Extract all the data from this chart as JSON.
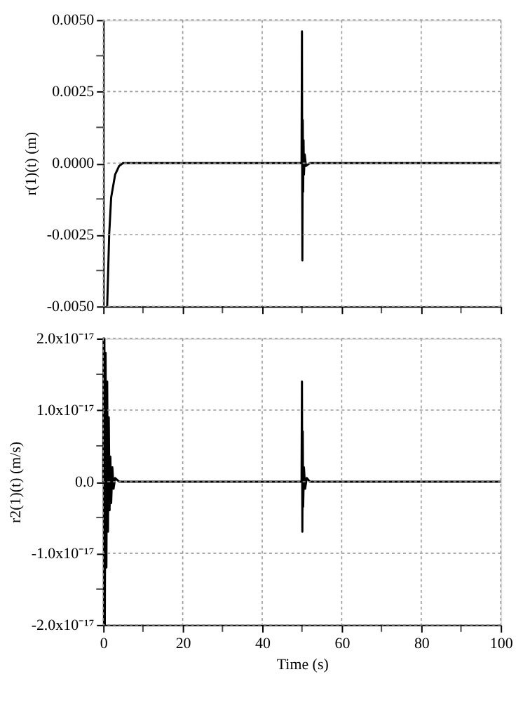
{
  "chart_data": [
    {
      "type": "line",
      "ylabel": "r(1)(t) (m)",
      "tick_labels": "y",
      "grid": true,
      "line_style": "solid",
      "marker": "none",
      "series": [
        {
          "color": "#000000",
          "x": [
            1.0,
            1.5,
            2,
            3,
            4,
            5,
            6,
            20,
            49.9,
            50,
            50.1,
            50.2,
            50.3,
            50.4,
            50.5,
            50.7,
            51,
            52,
            70,
            100
          ],
          "values": [
            -0.005,
            -0.0025,
            -0.0012,
            -0.0004,
            -0.0001,
            0,
            0,
            0,
            0,
            0.0046,
            -0.0034,
            0.0015,
            -0.001,
            0.0008,
            -0.0004,
            0.0003,
            -0.0001,
            0,
            0,
            0
          ]
        }
      ],
      "xlim": [
        0,
        100
      ],
      "xticks": [
        0,
        {
          "value": 10,
          "label": null
        },
        20,
        {
          "value": 30,
          "label": null
        },
        40,
        {
          "value": 50,
          "label": null
        },
        60,
        {
          "value": 70,
          "label": null
        },
        80,
        {
          "value": 90,
          "label": null
        },
        100
      ],
      "ylim": [
        -0.005,
        0.005
      ],
      "yticks": [
        {
          "value": -0.005,
          "label": "-0.0050"
        },
        {
          "value": -0.00375,
          "label": null
        },
        {
          "value": -0.0025,
          "label": "-0.0025"
        },
        {
          "value": -0.00125,
          "label": null
        },
        {
          "value": 0,
          "label": "0.0000"
        },
        {
          "value": 0.00125,
          "label": null
        },
        {
          "value": 0.0025,
          "label": "0.0025"
        },
        {
          "value": 0.00375,
          "label": null
        },
        {
          "value": 0.005,
          "label": "0.0050"
        }
      ]
    },
    {
      "type": "line",
      "xlabel": "Time (s)",
      "ylabel": "r2(1)(t) (m/s)",
      "grid": true,
      "line_style": "solid",
      "marker": "none",
      "series": [
        {
          "color": "#000000",
          "x": [
            0,
            0.1,
            0.2,
            0.3,
            0.4,
            0.6,
            0.8,
            1.0,
            1.2,
            1.4,
            1.6,
            1.8,
            2.0,
            2.3,
            2.6,
            3,
            4,
            49.9,
            50,
            50.1,
            50.2,
            50.3,
            50.5,
            50.8,
            51.2,
            52,
            100
          ],
          "values": [
            0,
            2e-17,
            -2e-17,
            2e-17,
            -2e-17,
            1.8e-17,
            -1.2e-17,
            1.4e-17,
            -7e-18,
            9e-18,
            -4e-18,
            3.5e-18,
            -3e-18,
            2e-18,
            -1e-18,
            5e-19,
            0,
            0,
            1.4e-17,
            -7e-18,
            7e-18,
            -3.5e-18,
            2e-18,
            -1e-18,
            5e-19,
            0,
            0
          ]
        }
      ],
      "xlim": [
        0,
        100
      ],
      "xticks": [
        0,
        {
          "value": 10,
          "label": null
        },
        20,
        {
          "value": 30,
          "label": null
        },
        40,
        {
          "value": 50,
          "label": null
        },
        60,
        {
          "value": 70,
          "label": null
        },
        80,
        {
          "value": 90,
          "label": null
        },
        100
      ],
      "ylim": [
        -2e-17,
        2e-17
      ],
      "yticks": [
        {
          "value": -2e-17,
          "label": "-2.0x10⁻¹⁷"
        },
        {
          "value": -1.5e-17,
          "label": null
        },
        {
          "value": -1e-17,
          "label": "-1.0x10⁻¹⁷"
        },
        {
          "value": -5e-18,
          "label": null
        },
        {
          "value": 0,
          "label": "0.0"
        },
        {
          "value": 5e-18,
          "label": null
        },
        {
          "value": 1e-17,
          "label": "1.0x10⁻¹⁷"
        },
        {
          "value": 1.5e-17,
          "label": null
        },
        {
          "value": 2e-17,
          "label": "2.0x10⁻¹⁷"
        }
      ]
    }
  ]
}
